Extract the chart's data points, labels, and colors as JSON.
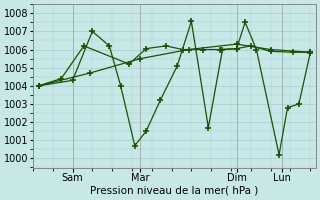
{
  "xlabel": "Pression niveau de la mer( hPa )",
  "bg_color": "#c8e8e8",
  "grid_color": "#a8cccc",
  "line_color": "#1a5200",
  "ylim": [
    999.5,
    1008.5
  ],
  "yticks": [
    1000,
    1001,
    1002,
    1003,
    1004,
    1005,
    1006,
    1007,
    1008
  ],
  "xlim": [
    0,
    100
  ],
  "xtick_positions": [
    14,
    38,
    72,
    88
  ],
  "xtick_labels": [
    "Sam",
    "Mar",
    "Dim",
    "Lun"
  ],
  "s1_x": [
    2,
    14,
    21,
    27,
    31,
    36,
    40,
    45,
    51,
    56,
    62,
    67,
    72,
    75,
    79,
    87,
    90,
    94,
    98
  ],
  "s1_y": [
    1004.0,
    1004.3,
    1007.0,
    1006.2,
    1004.0,
    1000.7,
    1001.5,
    1003.2,
    1005.1,
    1007.55,
    1001.7,
    1006.0,
    1006.05,
    1007.5,
    1006.0,
    1000.2,
    1002.8,
    1003.0,
    1005.8
  ],
  "s2_x": [
    2,
    10,
    18,
    34,
    40,
    47,
    53,
    60,
    66,
    72,
    77,
    84,
    92,
    98
  ],
  "s2_y": [
    1004.0,
    1004.4,
    1006.2,
    1005.2,
    1006.05,
    1006.2,
    1006.0,
    1006.0,
    1006.0,
    1006.05,
    1006.2,
    1005.9,
    1005.85,
    1005.85
  ],
  "s3_x": [
    2,
    20,
    38,
    55,
    72,
    84,
    98
  ],
  "s3_y": [
    1004.0,
    1004.7,
    1005.5,
    1006.0,
    1006.3,
    1006.0,
    1005.85
  ]
}
